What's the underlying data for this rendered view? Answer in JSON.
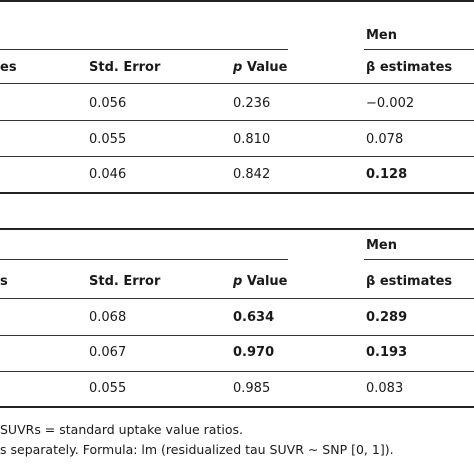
{
  "table1": {
    "group_label": "Men",
    "headers": {
      "partial_left": "es",
      "stderr": "Std. Error",
      "p_italic": "p",
      "p_rest": " Value",
      "beta": "β estimates"
    },
    "rows": [
      {
        "stderr": "0.056",
        "p": "0.236",
        "beta": "−0.002",
        "beta_bold": false,
        "p_bold": false
      },
      {
        "stderr": "0.055",
        "p": "0.810",
        "beta": "0.078",
        "beta_bold": false,
        "p_bold": false
      },
      {
        "stderr": "0.046",
        "p": "0.842",
        "beta": "0.128",
        "beta_bold": true,
        "p_bold": false
      }
    ]
  },
  "table2": {
    "group_label": "Men",
    "headers": {
      "partial_left": "s",
      "stderr": "Std. Error",
      "p_italic": "p",
      "p_rest": " Value",
      "beta": "β estimates"
    },
    "rows": [
      {
        "stderr": "0.068",
        "p": "0.634",
        "beta": "0.289",
        "beta_bold": true,
        "p_bold": true
      },
      {
        "stderr": "0.067",
        "p": "0.970",
        "beta": "0.193",
        "beta_bold": true,
        "p_bold": true
      },
      {
        "stderr": "0.055",
        "p": "0.985",
        "beta": "0.083",
        "beta_bold": false,
        "p_bold": false
      }
    ]
  },
  "footnotes": {
    "line1": "SUVRs = standard uptake value ratios.",
    "line2": "s separately. Formula: lm (residualized tau SUVR ∼ SNP [0, 1])."
  }
}
